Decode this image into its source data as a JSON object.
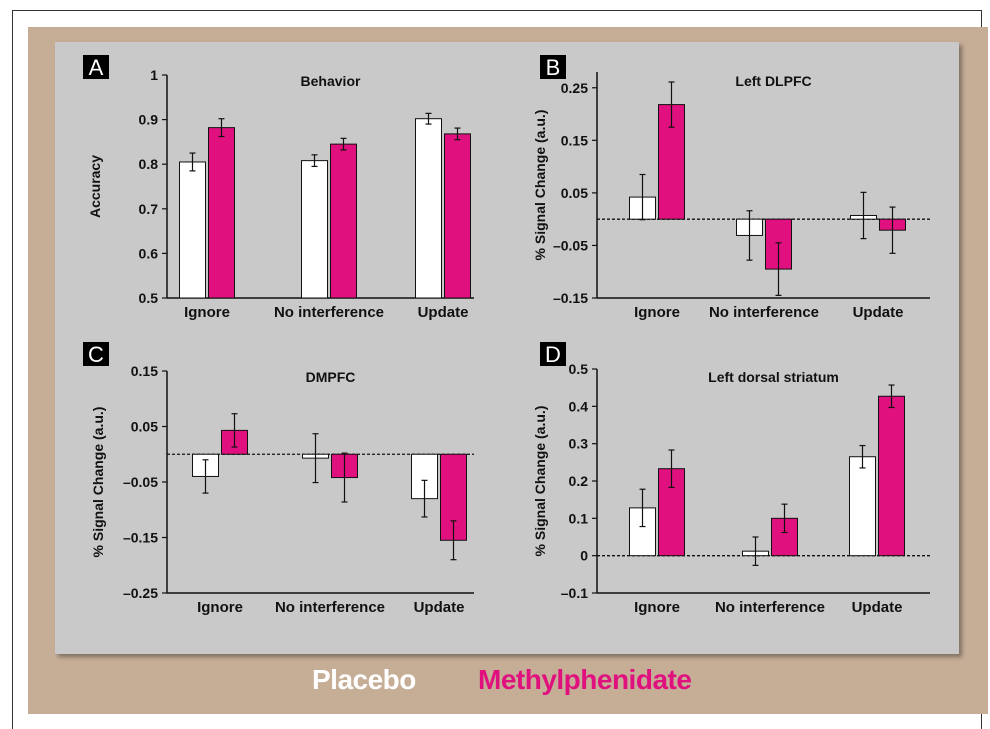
{
  "legend": {
    "placebo": "Placebo",
    "methylphenidate": "Methylphenidate"
  },
  "colors": {
    "placebo": "#ffffff",
    "methylphenidate": "#e0117e",
    "background_panel": "#c9c9c9",
    "frame": "#c5ad96"
  },
  "chart_data": [
    {
      "panel": "A",
      "type": "bar",
      "title": "Behavior",
      "ylabel": "Accuracy",
      "ylim": [
        0.5,
        1
      ],
      "yticks": [
        "0.5",
        "0.6",
        "0.7",
        "0.8",
        "0.9",
        "1"
      ],
      "categories": [
        "Ignore",
        "No interference",
        "Update"
      ],
      "baseline": null,
      "series": [
        {
          "name": "Placebo",
          "values": [
            0.805,
            0.808,
            0.902
          ],
          "errors": [
            0.02,
            0.013,
            0.012
          ]
        },
        {
          "name": "Methylphenidate",
          "values": [
            0.882,
            0.845,
            0.868
          ],
          "errors": [
            0.02,
            0.013,
            0.013
          ]
        }
      ]
    },
    {
      "panel": "B",
      "type": "bar",
      "title": "Left DLPFC",
      "ylabel": "% Signal Change (a.u.)",
      "ylim": [
        -0.15,
        0.28
      ],
      "yticks": [
        "–0.15",
        "–0.05",
        "0.05",
        "0.15",
        "0.25"
      ],
      "categories": [
        "Ignore",
        "No interference",
        "Update"
      ],
      "baseline": 0,
      "series": [
        {
          "name": "Placebo",
          "values": [
            0.042,
            -0.031,
            0.007
          ],
          "errors": [
            0.043,
            0.047,
            0.044
          ]
        },
        {
          "name": "Methylphenidate",
          "values": [
            0.218,
            -0.095,
            -0.021
          ],
          "errors": [
            0.043,
            0.05,
            0.044
          ]
        }
      ]
    },
    {
      "panel": "C",
      "type": "bar",
      "title": "DMPFC",
      "ylabel": "% Signal Change (a.u.)",
      "ylim": [
        -0.25,
        0.15
      ],
      "yticks": [
        "–0.25",
        "–0.15",
        "–0.05",
        "0.05",
        "0.15"
      ],
      "categories": [
        "Ignore",
        "No interference",
        "Update"
      ],
      "baseline": 0,
      "series": [
        {
          "name": "Placebo",
          "values": [
            -0.04,
            -0.007,
            -0.08
          ],
          "errors": [
            0.03,
            0.044,
            0.033
          ]
        },
        {
          "name": "Methylphenidate",
          "values": [
            0.043,
            -0.042,
            -0.155
          ],
          "errors": [
            0.03,
            0.044,
            0.035
          ]
        }
      ]
    },
    {
      "panel": "D",
      "type": "bar",
      "title": "Left dorsal striatum",
      "ylabel": "% Signal Change (a.u.)",
      "ylim": [
        -0.1,
        0.5
      ],
      "yticks": [
        "–0.1",
        "0",
        "0.1",
        "0.2",
        "0.3",
        "0.4",
        "0.5"
      ],
      "categories": [
        "Ignore",
        "No interference",
        "Update"
      ],
      "baseline": 0,
      "series": [
        {
          "name": "Placebo",
          "values": [
            0.128,
            0.012,
            0.265
          ],
          "errors": [
            0.05,
            0.038,
            0.03
          ]
        },
        {
          "name": "Methylphenidate",
          "values": [
            0.233,
            0.1,
            0.427
          ],
          "errors": [
            0.05,
            0.038,
            0.03
          ]
        }
      ]
    }
  ]
}
